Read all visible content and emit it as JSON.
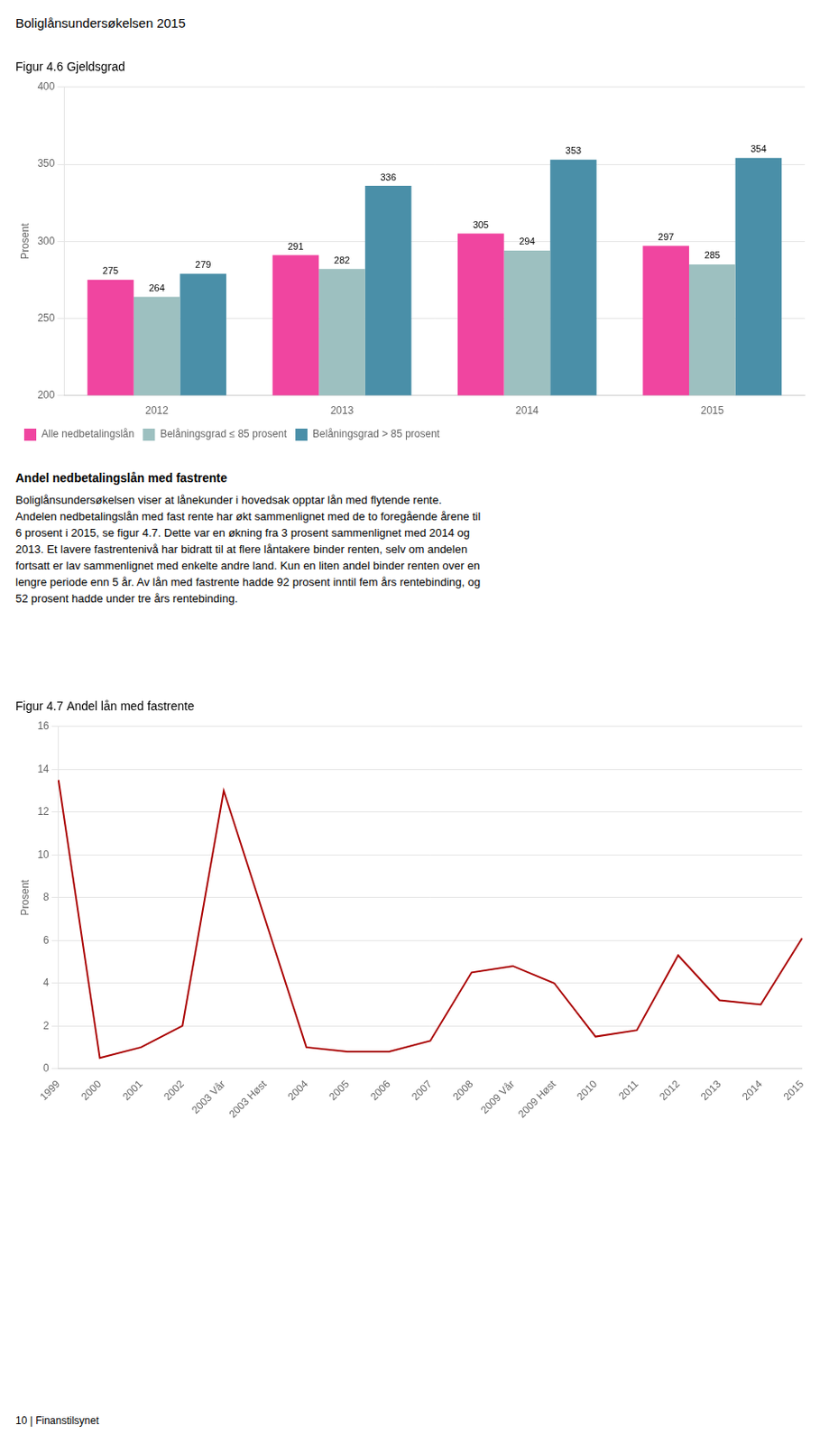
{
  "page_title": "Boliglånsundersøkelsen 2015",
  "text_heading": "Andel nedbetalingslån med fastrente",
  "text_lines": [
    "Boliglånsundersøkelsen viser at lånekunder i hovedsak opptar lån med flytende rente.",
    "Andelen nedbetalingslån med fast rente har økt sammenlignet med de to foregående årene til",
    "6 prosent i 2015, se figur 4.7. Dette var en økning fra 3 prosent sammenlignet med 2014 og",
    "2013. Et lavere fastrentenivå har bidratt til at flere låntakere binder renten, selv om andelen",
    "fortsatt er lav sammenlignet med enkelte andre land. Kun en liten andel binder renten over en",
    "lengre periode enn 5 år. Av lån med fastrente hadde 92 prosent inntil fem års rentebinding, og",
    "52 prosent hadde under tre års rentebinding."
  ],
  "footer": "10 | Finanstilsynet",
  "chart_data": [
    {
      "type": "bar",
      "title": "Figur 4.6 Gjeldsgrad",
      "ylabel": "Prosent",
      "categories": [
        "2012",
        "2013",
        "2014",
        "2015"
      ],
      "series": [
        {
          "name": "Alle nedbetalingslån",
          "color": "#F045A0",
          "values": [
            275,
            291,
            305,
            297
          ]
        },
        {
          "name": "Belåningsgrad ≤ 85 prosent",
          "color": "#9DC0C0",
          "values": [
            264,
            282,
            294,
            285
          ]
        },
        {
          "name": "Belåningsgrad > 85 prosent",
          "color": "#4A8FA8",
          "values": [
            279,
            336,
            353,
            354
          ]
        }
      ],
      "ylim": [
        200,
        400
      ],
      "yticks": [
        200,
        250,
        300,
        350,
        400
      ],
      "grid": true,
      "legend": "bottom",
      "data_labels": true
    },
    {
      "type": "line",
      "title": "Figur 4.7 Andel lån med fastrente",
      "ylabel": "Prosent",
      "categories": [
        "1999",
        "2000",
        "2001",
        "2002",
        "2003 Vår",
        "2003 Høst",
        "2004",
        "2005",
        "2006",
        "2007",
        "2008",
        "2009 Vår",
        "2009 Høst",
        "2010",
        "2011",
        "2012",
        "2013",
        "2014",
        "2015"
      ],
      "values": [
        13.5,
        0.5,
        1.0,
        2.0,
        13.0,
        7.0,
        1.0,
        0.8,
        0.8,
        1.3,
        4.5,
        4.8,
        4.0,
        1.5,
        1.8,
        5.3,
        3.2,
        3.0,
        6.1
      ],
      "color": "#AA0000",
      "ylim": [
        0,
        16
      ],
      "yticks": [
        0,
        2,
        4,
        6,
        8,
        10,
        12,
        14,
        16
      ],
      "grid": true
    }
  ]
}
